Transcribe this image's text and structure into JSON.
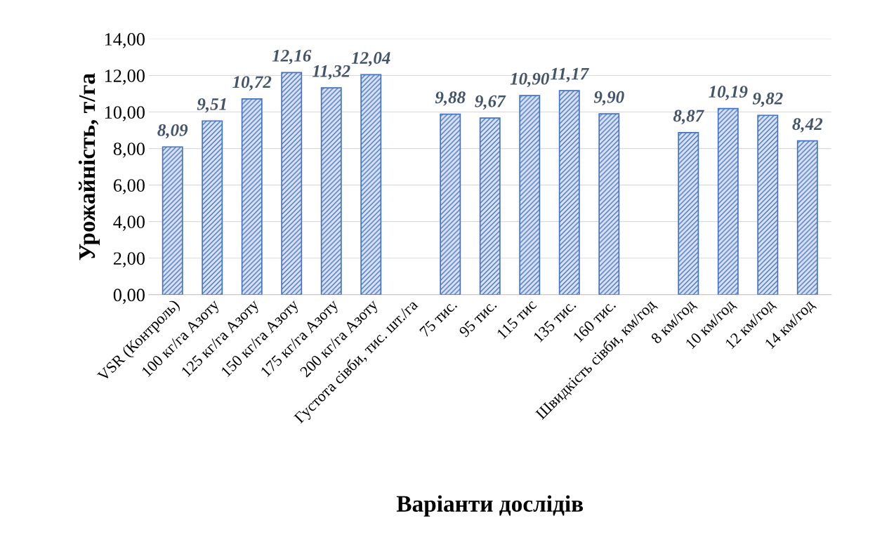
{
  "chart_data": {
    "type": "bar",
    "xlabel": "Варіанти дослідів",
    "ylabel": "Урожайність, т/га",
    "categories": [
      "VSR (Контроль)",
      "100 кг/га Азоту",
      "125 кг/га Азоту",
      "150 кг/га Азоту",
      "175 кг/га Азоту",
      "200 кг/га Азоту",
      "Густота сівби, тис. шт./га",
      "75 тис.",
      "95 тис.",
      "115 тис",
      "135 тис.",
      "160 тис.",
      "Швидкість сівби, км/год",
      "8 км/год",
      "10 км/год",
      "12 км/год",
      "14 км/год"
    ],
    "values": [
      8.09,
      9.51,
      10.72,
      12.16,
      11.32,
      12.04,
      null,
      9.88,
      9.67,
      10.9,
      11.17,
      9.9,
      null,
      8.87,
      10.19,
      9.82,
      8.42
    ],
    "value_labels": [
      "8,09",
      "9,51",
      "10,72",
      "12,16",
      "11,32",
      "12,04",
      null,
      "9,88",
      "9,67",
      "10,90",
      "11,17",
      "9,90",
      null,
      "8,87",
      "10,19",
      "9,82",
      "8,42"
    ],
    "color": "#4472c4",
    "ylim": [
      0,
      14
    ],
    "yticks": [
      {
        "value": 0,
        "label": "0,00"
      },
      {
        "value": 2,
        "label": "2,00"
      },
      {
        "value": 4,
        "label": "4,00"
      },
      {
        "value": 6,
        "label": "6,00"
      },
      {
        "value": 8,
        "label": "8,00"
      },
      {
        "value": 10,
        "label": "10,00"
      },
      {
        "value": 12,
        "label": "12,00"
      },
      {
        "value": 14,
        "label": "14,00"
      }
    ],
    "grid": "y"
  }
}
